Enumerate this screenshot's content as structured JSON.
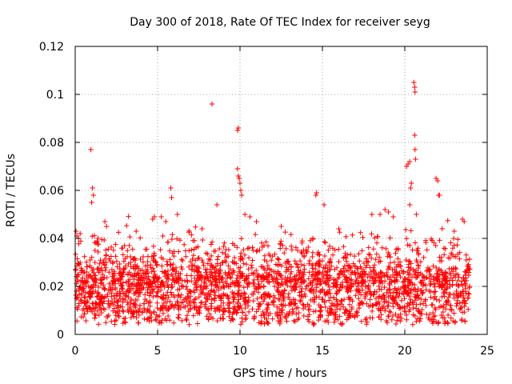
{
  "chart_data": {
    "type": "scatter",
    "title": "Day 300 of 2018, Rate Of TEC Index for receiver seyg",
    "xlabel": "GPS time / hours",
    "ylabel": "ROTI / TECUs",
    "xlim": [
      0,
      25
    ],
    "ylim": [
      0,
      0.12
    ],
    "xticks": [
      0,
      5,
      10,
      15,
      20,
      25
    ],
    "xtick_labels": [
      "0",
      "5",
      "10",
      "15",
      "20",
      "25"
    ],
    "yticks": [
      0,
      0.02,
      0.04,
      0.06,
      0.08,
      0.1,
      0.12
    ],
    "ytick_labels": [
      "0",
      "0.02",
      "0.04",
      "0.06",
      "0.08",
      "0.1",
      "0.12"
    ],
    "grid": true,
    "marker": "+",
    "color": "#ff0000",
    "series": [
      {
        "name": "ROTI",
        "x": [
          0.05,
          0.1,
          0.15,
          0.2,
          0.25,
          0.3,
          0.35,
          0.15,
          0.22,
          0.3,
          0.95,
          1.05,
          1.1,
          1.2,
          1.3,
          1.8,
          1.85,
          1.9,
          2.0,
          2.2,
          3.0,
          3.5,
          3.7,
          4.0,
          4.5,
          4.7,
          4.8,
          4.9,
          5.2,
          5.5,
          5.8,
          5.85,
          5.9,
          6.0,
          6.2,
          6.5,
          6.8,
          7.2,
          7.7,
          8.0,
          8.3,
          8.6,
          9.0,
          9.5,
          9.7,
          9.85,
          9.9,
          9.95,
          10.0,
          10.05,
          10.1,
          10.2,
          10.3,
          10.6,
          10.8,
          11.0,
          11.3,
          11.6,
          12.0,
          12.5,
          13.0,
          13.4,
          13.8,
          14.2,
          14.6,
          14.65,
          14.7,
          15.1,
          15.5,
          16.0,
          16.5,
          17.0,
          17.5,
          17.8,
          18.0,
          18.5,
          18.8,
          19.0,
          19.3,
          19.5,
          19.8,
          20.1,
          20.3,
          20.4,
          20.45,
          20.5,
          20.6,
          20.62,
          20.65,
          20.7,
          20.75,
          21.0,
          21.3,
          21.6,
          21.9,
          22.0,
          22.05,
          22.1,
          22.5,
          23.0,
          23.3,
          23.5,
          23.6,
          23.7,
          23.8
        ]
      }
    ]
  }
}
